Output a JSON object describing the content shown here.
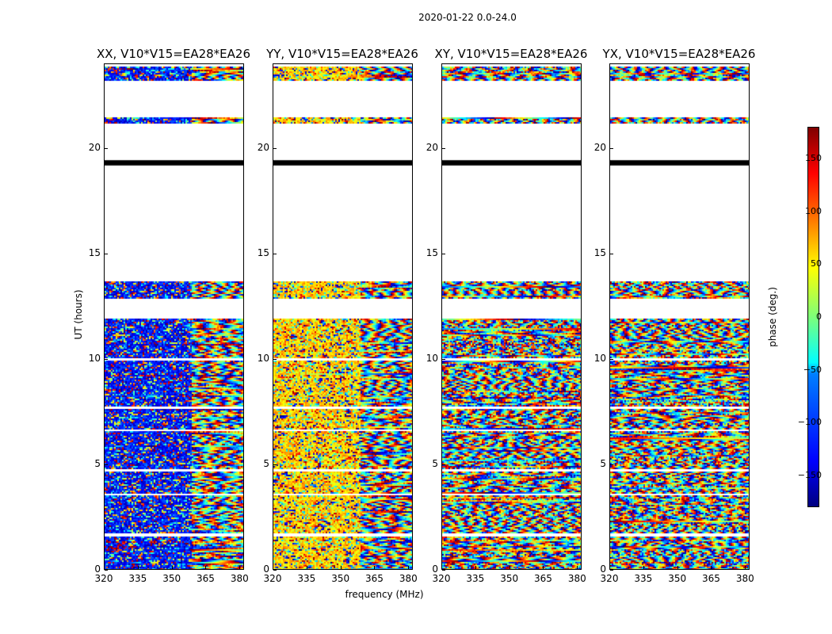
{
  "chart_data": {
    "type": "heatmap",
    "suptitle": "2020-01-22 0.0-24.0",
    "panels": [
      {
        "title": "XX, V10*V15=EA28*EA26",
        "bias": -130
      },
      {
        "title": "YY, V10*V15=EA28*EA26",
        "bias": 60
      },
      {
        "title": "XY, V10*V15=EA28*EA26",
        "bias": 0
      },
      {
        "title": "YX, V10*V15=EA28*EA26",
        "bias": 0
      }
    ],
    "xlabel": "frequency (MHz)",
    "ylabel": "UT (hours)",
    "xlim": [
      320,
      382
    ],
    "ylim": [
      0,
      24
    ],
    "xticks": [
      "320",
      "335",
      "350",
      "365",
      "380"
    ],
    "xtick_values": [
      320,
      335,
      350,
      365,
      380
    ],
    "yticks": [
      "0",
      "5",
      "10",
      "15",
      "20"
    ],
    "ytick_values": [
      0,
      5,
      10,
      15,
      20
    ],
    "data_segments_hours": [
      [
        0.05,
        1.6
      ],
      [
        1.75,
        3.55
      ],
      [
        3.65,
        4.7
      ],
      [
        4.8,
        6.6
      ],
      [
        6.7,
        7.65
      ],
      [
        7.8,
        9.95
      ],
      [
        10.05,
        11.95
      ],
      [
        12.9,
        13.7
      ],
      [
        21.2,
        21.5
      ],
      [
        23.2,
        23.9
      ]
    ],
    "flagged_lines_hours": [
      [
        19.2,
        19.45
      ]
    ],
    "colorbar": {
      "label": "phase (deg.)",
      "range": [
        -180,
        180
      ],
      "ticks": [
        "150",
        "100",
        "50",
        "0",
        "−50",
        "−100",
        "−150"
      ],
      "tick_values": [
        150,
        100,
        50,
        0,
        -50,
        -100,
        -150
      ]
    }
  }
}
